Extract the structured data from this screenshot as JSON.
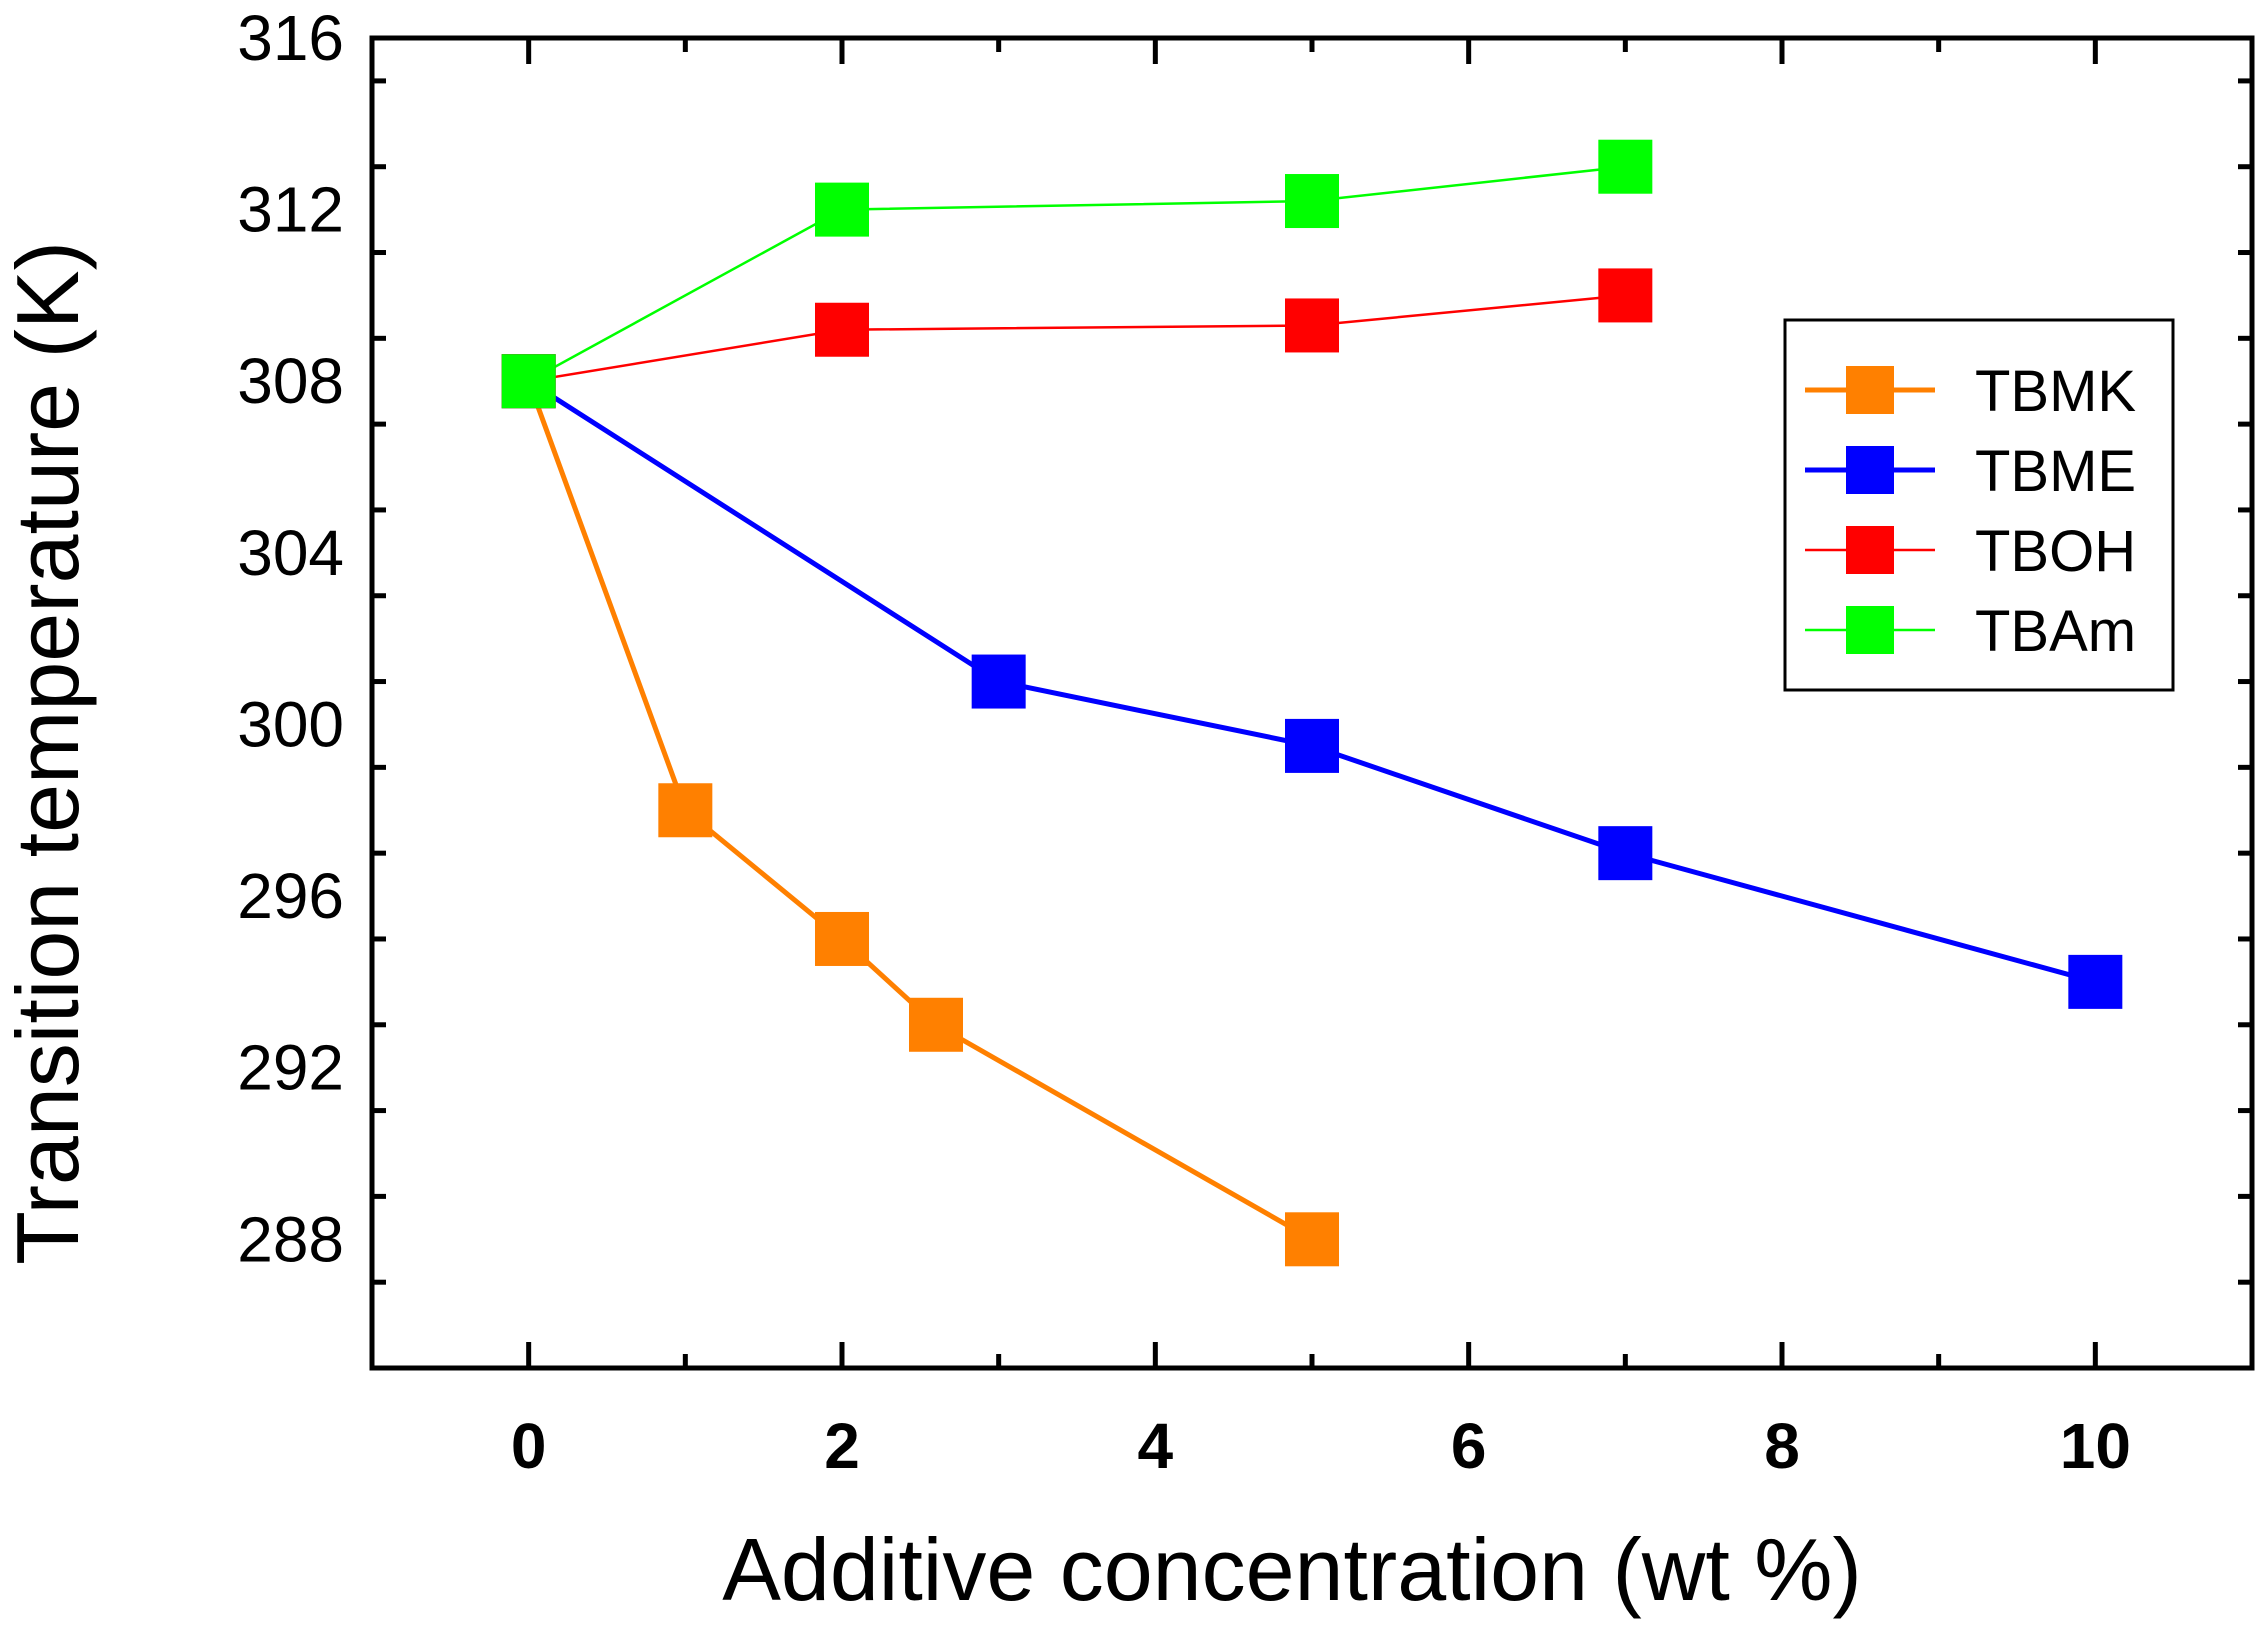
{
  "chart_data": {
    "type": "line",
    "title": "",
    "xlabel": "Additive concentration (wt %)",
    "ylabel": "Transition temperature (K)",
    "xlim": [
      -1,
      11
    ],
    "ylim": [
      285,
      316
    ],
    "xticks": [
      0,
      2,
      4,
      6,
      8,
      10
    ],
    "yticks": [
      288,
      292,
      296,
      300,
      304,
      308,
      312,
      316
    ],
    "legend_position": "top-right",
    "series": [
      {
        "name": "TBMK",
        "color": "#ff8000",
        "x": [
          0,
          1,
          2,
          2.6,
          5
        ],
        "y": [
          308,
          298,
          295,
          293,
          288
        ]
      },
      {
        "name": "TBME",
        "color": "#0000ff",
        "x": [
          0,
          3,
          5,
          7,
          10
        ],
        "y": [
          308,
          301,
          299.5,
          297,
          294
        ]
      },
      {
        "name": "TBOH",
        "color": "#ff0000",
        "x": [
          0,
          2,
          5,
          7
        ],
        "y": [
          308,
          309.2,
          309.3,
          310
        ]
      },
      {
        "name": "TBAm",
        "color": "#00ff00",
        "x": [
          0,
          2,
          5,
          7
        ],
        "y": [
          308,
          312,
          312.2,
          313
        ]
      }
    ]
  }
}
